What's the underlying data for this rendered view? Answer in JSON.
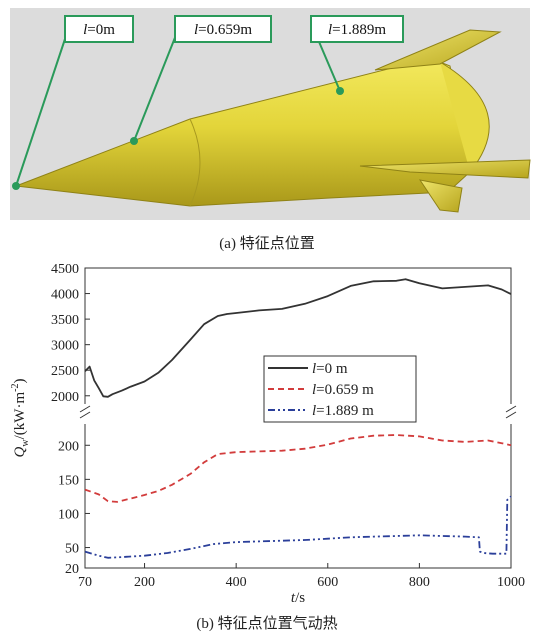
{
  "figure_a": {
    "caption": "(a) 特征点位置",
    "markers": [
      {
        "var": "l",
        "rest": "=0m"
      },
      {
        "var": "l",
        "rest": "=0.659m"
      },
      {
        "var": "l",
        "rest": "=1.889m"
      }
    ],
    "colors": {
      "body": "#d8c830",
      "marker": "#2a9a5a",
      "background": "#dcdcdc"
    }
  },
  "figure_b": {
    "caption": "(b) 特征点位置气动热"
  },
  "chart_data": {
    "type": "line",
    "title": "",
    "xlabel_var": "t",
    "xlabel_unit": "/s",
    "ylabel_var": "Q",
    "ylabel_sub": "w",
    "ylabel_unit": "/(kW·m",
    "ylabel_sup": "-2",
    "ylabel_close": ")",
    "xlim": [
      70,
      1000
    ],
    "x_ticks": [
      "70",
      "200",
      "400",
      "600",
      "800",
      "1000"
    ],
    "x_tick_values": [
      70,
      200,
      400,
      600,
      800,
      1000
    ],
    "y_axis_broken": true,
    "ylim_upper": [
      1800,
      4500
    ],
    "ylim_lower": [
      20,
      240
    ],
    "y_ticks_upper": [
      "2000",
      "2500",
      "3000",
      "3500",
      "4000",
      "4500"
    ],
    "y_tick_values_upper": [
      2000,
      2500,
      3000,
      3500,
      4000,
      4500
    ],
    "y_ticks_lower": [
      "20",
      "50",
      "100",
      "150",
      "200"
    ],
    "y_tick_values_lower": [
      20,
      50,
      100,
      150,
      200
    ],
    "legend_placement": "center-right",
    "grid": false,
    "series": [
      {
        "name_var": "l",
        "name_rest": "=0 m",
        "color": "#333333",
        "style": "solid",
        "panel": "upper",
        "x": [
          70,
          80,
          90,
          100,
          110,
          120,
          130,
          150,
          170,
          200,
          230,
          260,
          300,
          330,
          360,
          380,
          400,
          450,
          500,
          550,
          600,
          650,
          700,
          750,
          770,
          800,
          850,
          900,
          950,
          980,
          1000
        ],
        "y": [
          2480,
          2570,
          2300,
          2150,
          1990,
          1980,
          2030,
          2100,
          2180,
          2280,
          2450,
          2700,
          3100,
          3400,
          3560,
          3600,
          3620,
          3670,
          3700,
          3800,
          3950,
          4150,
          4240,
          4250,
          4280,
          4200,
          4100,
          4130,
          4160,
          4080,
          3990
        ]
      },
      {
        "name_var": "l",
        "name_rest": "=0.659 m",
        "color": "#d23c3c",
        "style": "dashed",
        "panel": "lower",
        "x": [
          70,
          100,
          120,
          140,
          170,
          200,
          230,
          260,
          300,
          330,
          360,
          400,
          450,
          500,
          550,
          600,
          650,
          700,
          750,
          800,
          850,
          900,
          950,
          980,
          1000
        ],
        "y": [
          135,
          128,
          118,
          117,
          122,
          127,
          133,
          142,
          158,
          175,
          187,
          190,
          191,
          192,
          195,
          201,
          210,
          214,
          215,
          213,
          207,
          205,
          207,
          203,
          200
        ]
      },
      {
        "name_var": "l",
        "name_rest": "=1.889 m",
        "color": "#2b3f9a",
        "style": "dashdotdot",
        "panel": "lower",
        "x": [
          70,
          80,
          100,
          120,
          150,
          200,
          250,
          300,
          350,
          400,
          450,
          500,
          550,
          600,
          650,
          700,
          750,
          800,
          850,
          900,
          930,
          932,
          940,
          960,
          980,
          990,
          992,
          1000
        ],
        "y": [
          44,
          42,
          38,
          35,
          36,
          38,
          42,
          48,
          55,
          58,
          59,
          60,
          61,
          63,
          65,
          66,
          67,
          68,
          67,
          66,
          65,
          44,
          42,
          41,
          41,
          41,
          120,
          125
        ]
      }
    ]
  }
}
